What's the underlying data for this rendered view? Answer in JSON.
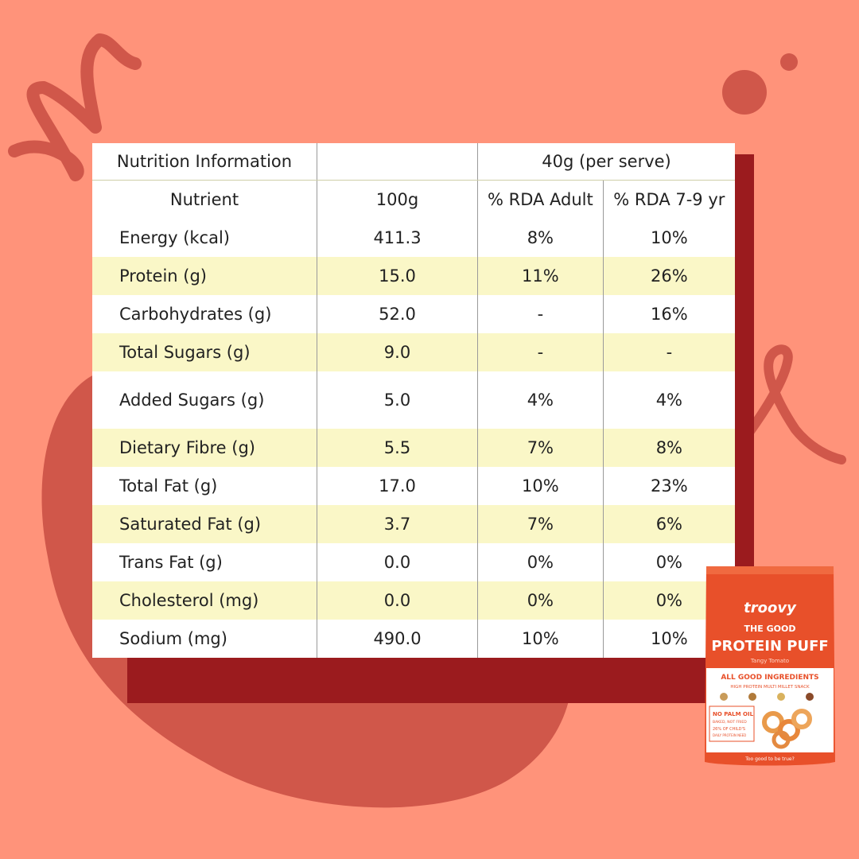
{
  "table": {
    "title": "Nutrition Information",
    "serve_label": "40g (per serve)",
    "headers": [
      "Nutrient",
      "100g",
      "% RDA Adult",
      "% RDA 7-9 yr"
    ],
    "rows": [
      {
        "nutrient": "Energy (kcal)",
        "per100g": "411.3",
        "rda_adult": "8%",
        "rda_child": "10%"
      },
      {
        "nutrient": "Protein (g)",
        "per100g": "15.0",
        "rda_adult": "11%",
        "rda_child": "26%"
      },
      {
        "nutrient": "Carbohydrates (g)",
        "per100g": "52.0",
        "rda_adult": "-",
        "rda_child": "16%"
      },
      {
        "nutrient": "Total Sugars (g)",
        "per100g": "9.0",
        "rda_adult": "-",
        "rda_child": "-"
      },
      {
        "nutrient": "Added Sugars (g)",
        "per100g": "5.0",
        "rda_adult": "4%",
        "rda_child": "4%"
      },
      {
        "nutrient": "Dietary Fibre (g)",
        "per100g": "5.5",
        "rda_adult": "7%",
        "rda_child": "8%"
      },
      {
        "nutrient": "Total Fat (g)",
        "per100g": "17.0",
        "rda_adult": "10%",
        "rda_child": "23%"
      },
      {
        "nutrient": "Saturated Fat (g)",
        "per100g": "3.7",
        "rda_adult": "7%",
        "rda_child": "6%"
      },
      {
        "nutrient": "Trans Fat (g)",
        "per100g": "0.0",
        "rda_adult": "0%",
        "rda_child": "0%"
      },
      {
        "nutrient": "Cholesterol (mg)",
        "per100g": "0.0",
        "rda_adult": "0%",
        "rda_child": "0%"
      },
      {
        "nutrient": "Sodium (mg)",
        "per100g": "490.0",
        "rda_adult": "10%",
        "rda_child": "10%"
      }
    ]
  },
  "pack": {
    "brand": "troovy",
    "line1": "THE GOOD",
    "line2": "PROTEIN PUFF",
    "flavour": "Tangy Tomato",
    "banner": "ALL GOOD INGREDIENTS",
    "sub": "HIGH PROTEIN MULTI MILLET SNACK",
    "claim1": "NO PALM OIL",
    "claim2": "BAKED, NOT FRIED",
    "claim3": "26% OF CHILD'S",
    "claim4": "DAILY PROTEIN NEED",
    "tagline": "Too good to be true?"
  },
  "colors": {
    "background": "#FF937A",
    "blob": "#D0574A",
    "shadow": "#9B1B1E",
    "row_alt": "#FAF7C7",
    "pack_orange": "#E8502A"
  }
}
